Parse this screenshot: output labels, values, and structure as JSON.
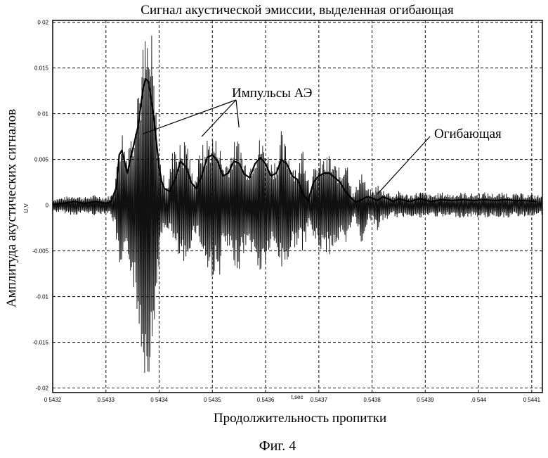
{
  "chart_data": {
    "type": "line",
    "title": "Сигнал акустической эмиссии, выделенная огибающая",
    "xlabel": "Продолжительность пропитки",
    "ylabel": "Амплитуда акустических сигналов",
    "x_unit_label": "t,sec",
    "y_unit_label": "U,V",
    "figure_caption": "Фиг. 4",
    "xlim": [
      0.5432,
      0.54412
    ],
    "ylim": [
      -0.0205,
      0.0202
    ],
    "grid": true,
    "xticks": [
      0.5432,
      0.5433,
      0.5434,
      0.5435,
      0.5436,
      0.5437,
      0.5438,
      0.5439,
      0.544,
      0.5441
    ],
    "xtick_labels": [
      "0 5432",
      "0.5433",
      "0 5434",
      "0 5435",
      "0.5436",
      "0.5437",
      "0.5438",
      "0 5439",
      ",0 544",
      "0 5441"
    ],
    "yticks": [
      0.02,
      0.015,
      0.01,
      0.005,
      0,
      -0.005,
      -0.01,
      -0.015,
      -0.02
    ],
    "ytick_labels": [
      "0 02",
      "0.015",
      "0 01",
      "0.005",
      "0",
      "-0.005",
      "-0.01",
      "-0.015",
      "-0.02"
    ],
    "series": [
      {
        "name": "Огибающая",
        "style": "thick line",
        "x": [
          0.5432,
          0.54322,
          0.54324,
          0.54326,
          0.54328,
          0.5433,
          0.54331,
          0.54332,
          0.543325,
          0.54333,
          0.54334,
          0.54335,
          0.54336,
          0.54337,
          0.543375,
          0.54338,
          0.54339,
          0.5434,
          0.543405,
          0.54341,
          0.54342,
          0.54343,
          0.54344,
          0.54345,
          0.54346,
          0.54347,
          0.54348,
          0.54349,
          0.5435,
          0.54351,
          0.54352,
          0.54353,
          0.54354,
          0.54355,
          0.54356,
          0.54357,
          0.54358,
          0.54359,
          0.5436,
          0.54361,
          0.54362,
          0.54363,
          0.54364,
          0.54365,
          0.54366,
          0.54367,
          0.54368,
          0.54369,
          0.5437,
          0.54371,
          0.54372,
          0.54373,
          0.54374,
          0.54375,
          0.54376,
          0.54377,
          0.54378,
          0.54379,
          0.5438,
          0.54381,
          0.54382,
          0.54383,
          0.54384,
          0.54385,
          0.54387,
          0.54389,
          0.54391,
          0.54393,
          0.54395,
          0.54397,
          0.54399,
          0.54401,
          0.54403,
          0.54405,
          0.54407,
          0.54409,
          0.54411
        ],
        "y": [
          0.0001,
          0.0002,
          0.0004,
          0.0002,
          0.0004,
          0.0002,
          0.0004,
          0.002,
          0.0055,
          0.006,
          0.0035,
          0.006,
          0.0085,
          0.0128,
          0.0138,
          0.0135,
          0.0095,
          0.0042,
          0.0025,
          0.0018,
          0.0015,
          0.0028,
          0.0048,
          0.0042,
          0.0025,
          0.0018,
          0.0032,
          0.0052,
          0.0055,
          0.0048,
          0.0032,
          0.0035,
          0.0048,
          0.0046,
          0.0034,
          0.003,
          0.0045,
          0.0052,
          0.0045,
          0.0032,
          0.0035,
          0.005,
          0.0045,
          0.0032,
          0.0028,
          0.0012,
          0.0005,
          0.0025,
          0.0032,
          0.0035,
          0.0035,
          0.003,
          0.0025,
          0.0015,
          0.0008,
          0.0003,
          0.0006,
          0.0009,
          0.0008,
          0.0005,
          0.0009,
          0.0007,
          0.0004,
          0.0007,
          0.0004,
          0.0007,
          0.0004,
          0.0006,
          0.0005,
          0.0006,
          0.0005,
          0.0006,
          0.0005,
          0.0006,
          0.0005,
          0.0005,
          0.0004
        ]
      },
      {
        "name": "Импульсы АЭ",
        "style": "oscillating signal",
        "peaks_x": [
          0.54333,
          0.543345,
          0.54336,
          0.54337,
          0.543385,
          0.54343,
          0.54345,
          0.54348,
          0.54351,
          0.54355,
          0.54359,
          0.54363,
          0.54367,
          0.54372,
          0.54375,
          0.54378,
          0.54381
        ],
        "peaks_y": [
          0.0085,
          0.006,
          0.015,
          0.0195,
          0.02,
          0.0055,
          0.0085,
          0.0055,
          0.0095,
          0.0075,
          0.0085,
          0.0075,
          0.0055,
          0.0055,
          0.0055,
          0.0045,
          0.003
        ],
        "troughs_y": [
          -0.0085,
          -0.009,
          -0.016,
          -0.018,
          -0.0198,
          -0.008,
          -0.0085,
          -0.0075,
          -0.0085,
          -0.0085,
          -0.008,
          -0.0085,
          -0.007,
          -0.006,
          -0.006,
          -0.004,
          -0.0025
        ]
      }
    ],
    "annotations": [
      {
        "text": "Импульсы АЭ",
        "points_to_x": [
          0.54337,
          0.54348,
          0.54355
        ],
        "points_to_y": [
          0.0078,
          0.0075,
          0.0085
        ]
      },
      {
        "text": "Огибающая",
        "points_to_x": 0.54381,
        "points_to_y": 0.0012
      }
    ]
  }
}
